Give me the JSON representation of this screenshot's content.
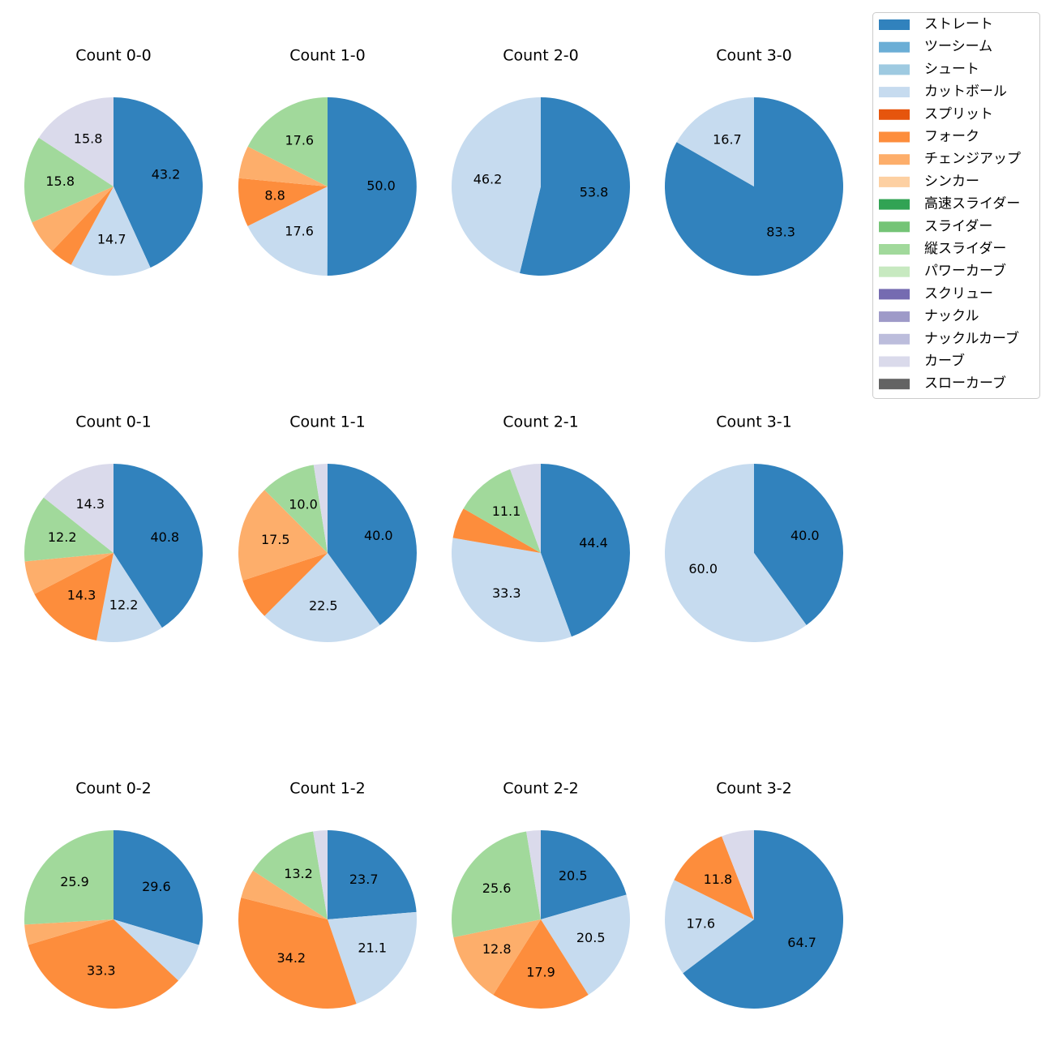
{
  "chart_data": {
    "type": "pie",
    "legend_position": "top-right",
    "legend": [
      {
        "name": "ストレート",
        "color": "#3182bd"
      },
      {
        "name": "ツーシーム",
        "color": "#6baed6"
      },
      {
        "name": "シュート",
        "color": "#9ecae1"
      },
      {
        "name": "カットボール",
        "color": "#c6dbef"
      },
      {
        "name": "スプリット",
        "color": "#e6550d"
      },
      {
        "name": "フォーク",
        "color": "#fd8d3c"
      },
      {
        "name": "チェンジアップ",
        "color": "#fdae6b"
      },
      {
        "name": "シンカー",
        "color": "#fdd0a2"
      },
      {
        "name": "高速スライダー",
        "color": "#31a354"
      },
      {
        "name": "スライダー",
        "color": "#74c476"
      },
      {
        "name": "縦スライダー",
        "color": "#a1d99b"
      },
      {
        "name": "パワーカーブ",
        "color": "#c7e9c0"
      },
      {
        "name": "スクリュー",
        "color": "#756bb1"
      },
      {
        "name": "ナックル",
        "color": "#9e9ac8"
      },
      {
        "name": "ナックルカーブ",
        "color": "#bcbddc"
      },
      {
        "name": "カーブ",
        "color": "#dadaeb"
      },
      {
        "name": "スローカーブ",
        "color": "#636363"
      }
    ],
    "pies": [
      {
        "title": "Count 0-0",
        "slices": [
          {
            "pitch": "ストレート",
            "value": 43.2,
            "label": "43.2"
          },
          {
            "pitch": "カットボール",
            "value": 14.7,
            "label": "14.7"
          },
          {
            "pitch": "フォーク",
            "value": 4.2,
            "label": ""
          },
          {
            "pitch": "チェンジアップ",
            "value": 6.3,
            "label": ""
          },
          {
            "pitch": "縦スライダー",
            "value": 15.8,
            "label": "15.8"
          },
          {
            "pitch": "カーブ",
            "value": 15.8,
            "label": "15.8"
          }
        ]
      },
      {
        "title": "Count 1-0",
        "slices": [
          {
            "pitch": "ストレート",
            "value": 50.0,
            "label": "50.0"
          },
          {
            "pitch": "カットボール",
            "value": 17.6,
            "label": "17.6"
          },
          {
            "pitch": "フォーク",
            "value": 8.8,
            "label": "8.8"
          },
          {
            "pitch": "チェンジアップ",
            "value": 5.9,
            "label": ""
          },
          {
            "pitch": "縦スライダー",
            "value": 17.6,
            "label": "17.6"
          }
        ]
      },
      {
        "title": "Count 2-0",
        "slices": [
          {
            "pitch": "ストレート",
            "value": 53.8,
            "label": "53.8"
          },
          {
            "pitch": "カットボール",
            "value": 46.2,
            "label": "46.2"
          }
        ]
      },
      {
        "title": "Count 3-0",
        "slices": [
          {
            "pitch": "ストレート",
            "value": 83.3,
            "label": "83.3"
          },
          {
            "pitch": "カットボール",
            "value": 16.7,
            "label": "16.7"
          }
        ]
      },
      {
        "title": "Count 0-1",
        "slices": [
          {
            "pitch": "ストレート",
            "value": 40.8,
            "label": "40.8"
          },
          {
            "pitch": "カットボール",
            "value": 12.2,
            "label": "12.2"
          },
          {
            "pitch": "フォーク",
            "value": 14.3,
            "label": "14.3"
          },
          {
            "pitch": "チェンジアップ",
            "value": 6.1,
            "label": ""
          },
          {
            "pitch": "縦スライダー",
            "value": 12.2,
            "label": "12.2"
          },
          {
            "pitch": "カーブ",
            "value": 14.3,
            "label": "14.3"
          }
        ]
      },
      {
        "title": "Count 1-1",
        "slices": [
          {
            "pitch": "ストレート",
            "value": 40.0,
            "label": "40.0"
          },
          {
            "pitch": "カットボール",
            "value": 22.5,
            "label": "22.5"
          },
          {
            "pitch": "フォーク",
            "value": 7.5,
            "label": ""
          },
          {
            "pitch": "チェンジアップ",
            "value": 17.5,
            "label": "17.5"
          },
          {
            "pitch": "縦スライダー",
            "value": 10.0,
            "label": "10.0"
          },
          {
            "pitch": "カーブ",
            "value": 2.5,
            "label": ""
          }
        ]
      },
      {
        "title": "Count 2-1",
        "slices": [
          {
            "pitch": "ストレート",
            "value": 44.4,
            "label": "44.4"
          },
          {
            "pitch": "カットボール",
            "value": 33.3,
            "label": "33.3"
          },
          {
            "pitch": "フォーク",
            "value": 5.6,
            "label": ""
          },
          {
            "pitch": "縦スライダー",
            "value": 11.1,
            "label": "11.1"
          },
          {
            "pitch": "カーブ",
            "value": 5.6,
            "label": ""
          }
        ]
      },
      {
        "title": "Count 3-1",
        "slices": [
          {
            "pitch": "ストレート",
            "value": 40.0,
            "label": "40.0"
          },
          {
            "pitch": "カットボール",
            "value": 60.0,
            "label": "60.0"
          }
        ]
      },
      {
        "title": "Count 0-2",
        "slices": [
          {
            "pitch": "ストレート",
            "value": 29.6,
            "label": "29.6"
          },
          {
            "pitch": "カットボール",
            "value": 7.4,
            "label": ""
          },
          {
            "pitch": "フォーク",
            "value": 33.3,
            "label": "33.3"
          },
          {
            "pitch": "チェンジアップ",
            "value": 3.7,
            "label": ""
          },
          {
            "pitch": "縦スライダー",
            "value": 25.9,
            "label": "25.9"
          }
        ]
      },
      {
        "title": "Count 1-2",
        "slices": [
          {
            "pitch": "ストレート",
            "value": 23.7,
            "label": "23.7"
          },
          {
            "pitch": "カットボール",
            "value": 21.1,
            "label": "21.1"
          },
          {
            "pitch": "フォーク",
            "value": 34.2,
            "label": "34.2"
          },
          {
            "pitch": "チェンジアップ",
            "value": 5.3,
            "label": ""
          },
          {
            "pitch": "縦スライダー",
            "value": 13.2,
            "label": "13.2"
          },
          {
            "pitch": "カーブ",
            "value": 2.6,
            "label": ""
          }
        ]
      },
      {
        "title": "Count 2-2",
        "slices": [
          {
            "pitch": "ストレート",
            "value": 20.5,
            "label": "20.5"
          },
          {
            "pitch": "カットボール",
            "value": 20.5,
            "label": "20.5"
          },
          {
            "pitch": "フォーク",
            "value": 17.9,
            "label": "17.9"
          },
          {
            "pitch": "チェンジアップ",
            "value": 12.8,
            "label": "12.8"
          },
          {
            "pitch": "縦スライダー",
            "value": 25.6,
            "label": "25.6"
          },
          {
            "pitch": "カーブ",
            "value": 2.6,
            "label": ""
          }
        ]
      },
      {
        "title": "Count 3-2",
        "slices": [
          {
            "pitch": "ストレート",
            "value": 64.7,
            "label": "64.7"
          },
          {
            "pitch": "カットボール",
            "value": 17.6,
            "label": "17.6"
          },
          {
            "pitch": "フォーク",
            "value": 11.8,
            "label": "11.8"
          },
          {
            "pitch": "カーブ",
            "value": 5.9,
            "label": ""
          }
        ]
      }
    ]
  }
}
